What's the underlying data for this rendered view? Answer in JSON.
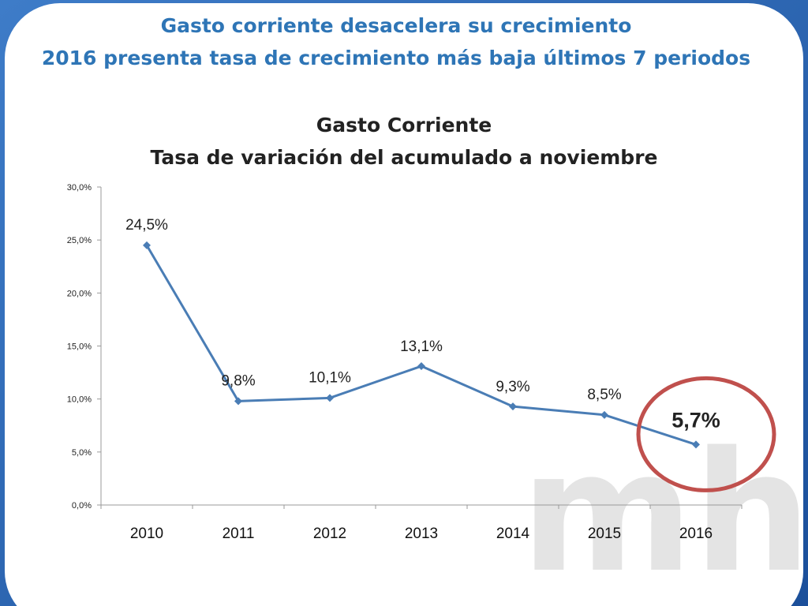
{
  "slide": {
    "title_line1": "Gasto corriente desacelera su crecimiento",
    "title_line2": "2016 presenta  tasa de crecimiento más baja últimos 7  periodos",
    "watermark": "mh"
  },
  "colors": {
    "title": "#2E75B6",
    "series": "#4A7DB5",
    "highlight_circle": "#C0504D",
    "frame_blue": "#1F5FA8"
  },
  "chart_data": {
    "type": "line",
    "title": "Gasto Corriente",
    "subtitle": "Tasa de variación del acumulado a noviembre",
    "categories": [
      "2010",
      "2011",
      "2012",
      "2013",
      "2014",
      "2015",
      "2016"
    ],
    "values": [
      24.5,
      9.8,
      10.1,
      13.1,
      9.3,
      8.5,
      5.7
    ],
    "data_labels": [
      "24,5%",
      "9,8%",
      "10,1%",
      "13,1%",
      "9,3%",
      "8,5%",
      "5,7%"
    ],
    "ylim": [
      0,
      30
    ],
    "yticks": [
      0,
      5,
      10,
      15,
      20,
      25,
      30
    ],
    "ytick_labels": [
      "0,0%",
      "5,0%",
      "10,0%",
      "15,0%",
      "20,0%",
      "25,0%",
      "30,0%"
    ],
    "grid": false,
    "legend": "none",
    "highlight": "2016"
  }
}
